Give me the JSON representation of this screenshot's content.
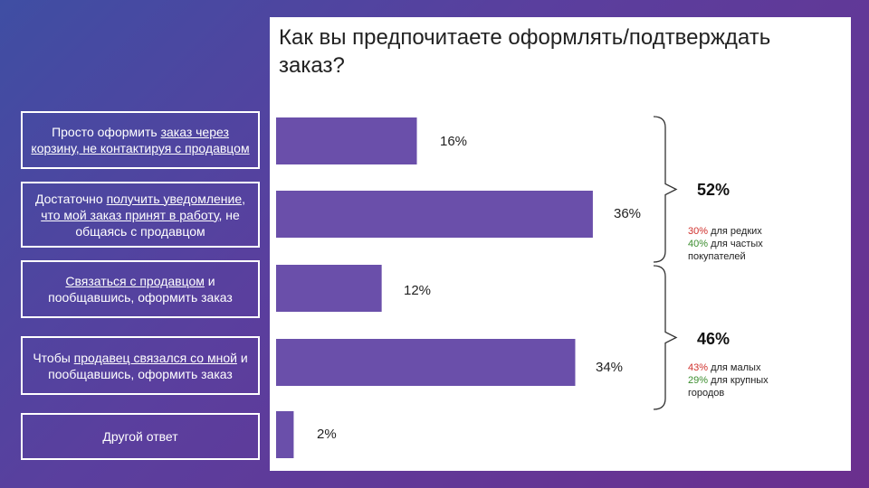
{
  "title": "Как вы предпочитаете оформлять/подтверждать заказ?",
  "colors": {
    "bar": "#6a4faa",
    "red": "#d0312d",
    "green": "#3c8d2f"
  },
  "options": [
    {
      "parts": [
        {
          "t": "Просто оформить ",
          "u": false
        },
        {
          "t": "заказ через корзину, не контактируя с продавцом",
          "u": true
        }
      ]
    },
    {
      "parts": [
        {
          "t": "Достаточно ",
          "u": false
        },
        {
          "t": "получить уведомление, что мой заказ принят в работу",
          "u": true
        },
        {
          "t": ", не общаясь с продавцом",
          "u": false
        }
      ]
    },
    {
      "parts": [
        {
          "t": "Связаться с продавцом",
          "u": true
        },
        {
          "t": " и пообщавшись, оформить заказ",
          "u": false
        }
      ]
    },
    {
      "parts": [
        {
          "t": "Чтобы ",
          "u": false
        },
        {
          "t": "продавец связался со мной",
          "u": true
        },
        {
          "t": " и пообщавшись, оформить заказ",
          "u": false
        }
      ]
    },
    {
      "parts": [
        {
          "t": "Другой ответ",
          "u": false
        }
      ]
    }
  ],
  "chart_data": {
    "type": "bar",
    "orientation": "horizontal",
    "title": "Как вы предпочитаете оформлять/подтверждать заказ?",
    "categories": [
      "Просто оформить заказ через корзину, не контактируя с продавцом",
      "Достаточно получить уведомление, что мой заказ принят в работу, не общаясь с продавцом",
      "Связаться с продавцом и пообщавшись, оформить заказ",
      "Чтобы продавец связался со мной и пообщавшись, оформить заказ",
      "Другой ответ"
    ],
    "values": [
      16,
      36,
      12,
      34,
      2
    ],
    "data_labels": [
      "16%",
      "36%",
      "12%",
      "34%",
      "2%"
    ],
    "xlim": [
      0,
      40
    ],
    "groups": [
      {
        "total_label": "52%",
        "rows": [
          0,
          1
        ],
        "notes": [
          {
            "value": "30%",
            "text": " для редких",
            "color": "red"
          },
          {
            "value": "40%",
            "text": " для частых",
            "color": "green"
          },
          {
            "value": "",
            "text": "покупателей",
            "color": ""
          }
        ]
      },
      {
        "total_label": "46%",
        "rows": [
          2,
          3
        ],
        "notes": [
          {
            "value": "43%",
            "text": " для малых",
            "color": "red"
          },
          {
            "value": "29%",
            "text": " для крупных",
            "color": "green"
          },
          {
            "value": "",
            "text": "городов",
            "color": ""
          }
        ]
      }
    ]
  }
}
